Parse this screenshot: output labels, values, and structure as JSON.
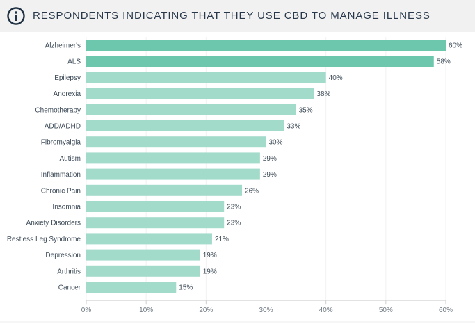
{
  "header": {
    "title": "RESPONDENTS INDICATING THAT THEY USE CBD TO MANAGE ILLNESS",
    "icon": "info-icon"
  },
  "colors": {
    "bar_dark": "#6dc7ad",
    "bar_light": "#a3dbcb",
    "header_bg": "#f1f1f1",
    "title_text": "#28384a",
    "icon": "#1f3142"
  },
  "chart_data": {
    "type": "bar",
    "orientation": "horizontal",
    "title": "RESPONDENTS INDICATING THAT THEY USE CBD TO MANAGE ILLNESS",
    "categories": [
      "Alzheimer's",
      "ALS",
      "Epilepsy",
      "Anorexia",
      "Chemotherapy",
      "ADD/ADHD",
      "Fibromyalgia",
      "Autism",
      "Inflammation",
      "Chronic Pain",
      "Insomnia",
      "Anxiety Disorders",
      "Restless Leg Syndrome",
      "Depression",
      "Arthritis",
      "Cancer"
    ],
    "values": [
      60,
      58,
      40,
      38,
      35,
      33,
      30,
      29,
      29,
      26,
      23,
      23,
      21,
      19,
      19,
      15
    ],
    "value_labels": [
      "60%",
      "58%",
      "40%",
      "38%",
      "35%",
      "33%",
      "30%",
      "29%",
      "29%",
      "26%",
      "23%",
      "23%",
      "21%",
      "19%",
      "19%",
      "15%"
    ],
    "highlight_count": 2,
    "xlim": [
      0,
      60
    ],
    "xticks": [
      0,
      10,
      20,
      30,
      40,
      50,
      60
    ],
    "xtick_labels": [
      "0%",
      "10%",
      "20%",
      "30%",
      "40%",
      "50%",
      "60%"
    ],
    "xlabel": "",
    "ylabel": "",
    "grid": true,
    "legend": "none"
  }
}
